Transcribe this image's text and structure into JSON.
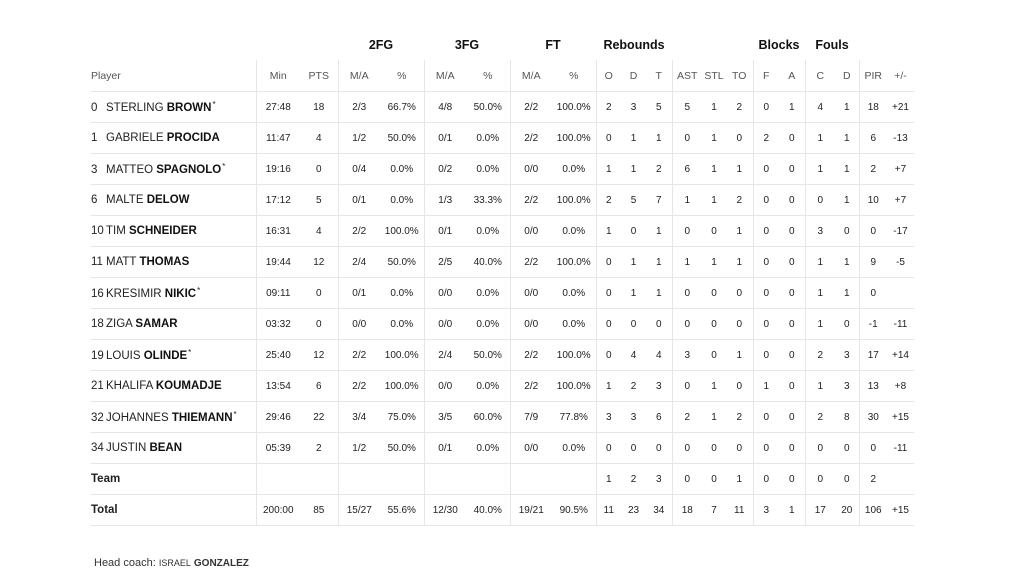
{
  "groups": {
    "fg2": "2FG",
    "fg3": "3FG",
    "ft": "FT",
    "rebounds": "Rebounds",
    "blocks": "Blocks",
    "fouls": "Fouls"
  },
  "headers": [
    "Player",
    "Min",
    "PTS",
    "M/A",
    "%",
    "M/A",
    "%",
    "M/A",
    "%",
    "O",
    "D",
    "T",
    "AST",
    "STL",
    "TO",
    "F",
    "A",
    "C",
    "D",
    "PIR",
    "+/-"
  ],
  "players": [
    {
      "num": "0",
      "first": "STERLING",
      "last": "BROWN",
      "starter": true,
      "stats": [
        "27:48",
        "18",
        "2/3",
        "66.7%",
        "4/8",
        "50.0%",
        "2/2",
        "100.0%",
        "2",
        "3",
        "5",
        "5",
        "1",
        "2",
        "0",
        "1",
        "4",
        "1",
        "18",
        "+21"
      ]
    },
    {
      "num": "1",
      "first": "GABRIELE",
      "last": "PROCIDA",
      "starter": false,
      "stats": [
        "11:47",
        "4",
        "1/2",
        "50.0%",
        "0/1",
        "0.0%",
        "2/2",
        "100.0%",
        "0",
        "1",
        "1",
        "0",
        "1",
        "0",
        "2",
        "0",
        "1",
        "1",
        "6",
        "-13"
      ]
    },
    {
      "num": "3",
      "first": "MATTEO",
      "last": "SPAGNOLO",
      "starter": true,
      "stats": [
        "19:16",
        "0",
        "0/4",
        "0.0%",
        "0/2",
        "0.0%",
        "0/0",
        "0.0%",
        "1",
        "1",
        "2",
        "6",
        "1",
        "1",
        "0",
        "0",
        "1",
        "1",
        "2",
        "+7"
      ]
    },
    {
      "num": "6",
      "first": "MALTE",
      "last": "DELOW",
      "starter": false,
      "stats": [
        "17:12",
        "5",
        "0/1",
        "0.0%",
        "1/3",
        "33.3%",
        "2/2",
        "100.0%",
        "2",
        "5",
        "7",
        "1",
        "1",
        "2",
        "0",
        "0",
        "0",
        "1",
        "10",
        "+7"
      ]
    },
    {
      "num": "10",
      "first": "TIM",
      "last": "SCHNEIDER",
      "starter": false,
      "stats": [
        "16:31",
        "4",
        "2/2",
        "100.0%",
        "0/1",
        "0.0%",
        "0/0",
        "0.0%",
        "1",
        "0",
        "1",
        "0",
        "0",
        "1",
        "0",
        "0",
        "3",
        "0",
        "0",
        "-17"
      ]
    },
    {
      "num": "11",
      "first": "MATT",
      "last": "THOMAS",
      "starter": false,
      "stats": [
        "19:44",
        "12",
        "2/4",
        "50.0%",
        "2/5",
        "40.0%",
        "2/2",
        "100.0%",
        "0",
        "1",
        "1",
        "1",
        "1",
        "1",
        "0",
        "0",
        "1",
        "1",
        "9",
        "-5"
      ]
    },
    {
      "num": "16",
      "first": "KRESIMIR",
      "last": "NIKIC",
      "starter": true,
      "stats": [
        "09:11",
        "0",
        "0/1",
        "0.0%",
        "0/0",
        "0.0%",
        "0/0",
        "0.0%",
        "0",
        "1",
        "1",
        "0",
        "0",
        "0",
        "0",
        "0",
        "1",
        "1",
        "0",
        ""
      ]
    },
    {
      "num": "18",
      "first": "ZIGA",
      "last": "SAMAR",
      "starter": false,
      "stats": [
        "03:32",
        "0",
        "0/0",
        "0.0%",
        "0/0",
        "0.0%",
        "0/0",
        "0.0%",
        "0",
        "0",
        "0",
        "0",
        "0",
        "0",
        "0",
        "0",
        "1",
        "0",
        "-1",
        "-11"
      ]
    },
    {
      "num": "19",
      "first": "LOUIS",
      "last": "OLINDE",
      "starter": true,
      "stats": [
        "25:40",
        "12",
        "2/2",
        "100.0%",
        "2/4",
        "50.0%",
        "2/2",
        "100.0%",
        "0",
        "4",
        "4",
        "3",
        "0",
        "1",
        "0",
        "0",
        "2",
        "3",
        "17",
        "+14"
      ]
    },
    {
      "num": "21",
      "first": "KHALIFA",
      "last": "KOUMADJE",
      "starter": false,
      "stats": [
        "13:54",
        "6",
        "2/2",
        "100.0%",
        "0/0",
        "0.0%",
        "2/2",
        "100.0%",
        "1",
        "2",
        "3",
        "0",
        "1",
        "0",
        "1",
        "0",
        "1",
        "3",
        "13",
        "+8"
      ]
    },
    {
      "num": "32",
      "first": "JOHANNES",
      "last": "THIEMANN",
      "starter": true,
      "stats": [
        "29:46",
        "22",
        "3/4",
        "75.0%",
        "3/5",
        "60.0%",
        "7/9",
        "77.8%",
        "3",
        "3",
        "6",
        "2",
        "1",
        "2",
        "0",
        "0",
        "2",
        "8",
        "30",
        "+15"
      ]
    },
    {
      "num": "34",
      "first": "JUSTIN",
      "last": "BEAN",
      "starter": false,
      "stats": [
        "05:39",
        "2",
        "1/2",
        "50.0%",
        "0/1",
        "0.0%",
        "0/0",
        "0.0%",
        "0",
        "0",
        "0",
        "0",
        "0",
        "0",
        "0",
        "0",
        "0",
        "0",
        "0",
        "-11"
      ]
    }
  ],
  "team": {
    "label": "Team",
    "stats": [
      "",
      "",
      "",
      "",
      "",
      "",
      "",
      "",
      "1",
      "2",
      "3",
      "0",
      "0",
      "1",
      "0",
      "0",
      "0",
      "0",
      "2",
      ""
    ]
  },
  "total": {
    "label": "Total",
    "stats": [
      "200:00",
      "85",
      "15/27",
      "55.6%",
      "12/30",
      "40.0%",
      "19/21",
      "90.5%",
      "11",
      "23",
      "34",
      "18",
      "7",
      "11",
      "3",
      "1",
      "17",
      "20",
      "106",
      "+15"
    ]
  },
  "coach": {
    "label": "Head coach:",
    "first": "ISRAEL",
    "last": "GONZALEZ"
  },
  "star_symbol": "*"
}
